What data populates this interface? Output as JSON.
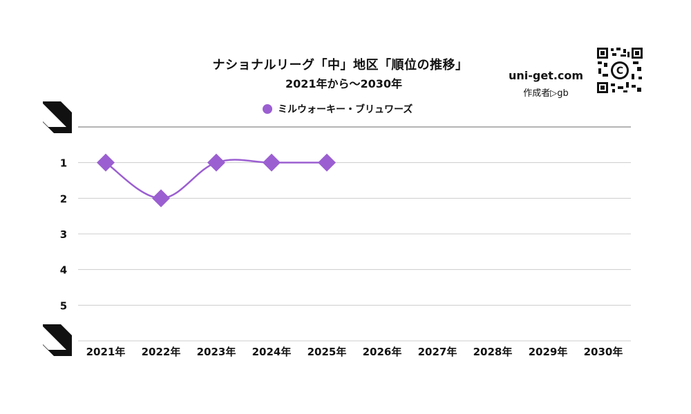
{
  "title": "ナショナルリーグ「中」地区「順位の推移」",
  "subtitle": "2021年から〜2030年",
  "site": "uni-get.com",
  "author": "作成者▷gb",
  "colors": {
    "series": "#9b5fd1",
    "grid": "#cccccc",
    "top_axis": "#888888"
  },
  "chart_data": {
    "type": "line",
    "title": "ナショナルリーグ「中」地区「順位の推移」",
    "subtitle": "2021年から〜2030年",
    "categories": [
      "2021年",
      "2022年",
      "2023年",
      "2024年",
      "2025年",
      "2026年",
      "2027年",
      "2028年",
      "2029年",
      "2030年"
    ],
    "y_ticks": [
      "1",
      "2",
      "3",
      "4",
      "5"
    ],
    "ylim": [
      0,
      6
    ],
    "y_inverted": true,
    "grid": true,
    "legend_position": "top-center",
    "series": [
      {
        "name": "ミルウォーキー・ブリュワーズ",
        "values": [
          1,
          2,
          1,
          1,
          1,
          null,
          null,
          null,
          null,
          null
        ]
      }
    ]
  }
}
